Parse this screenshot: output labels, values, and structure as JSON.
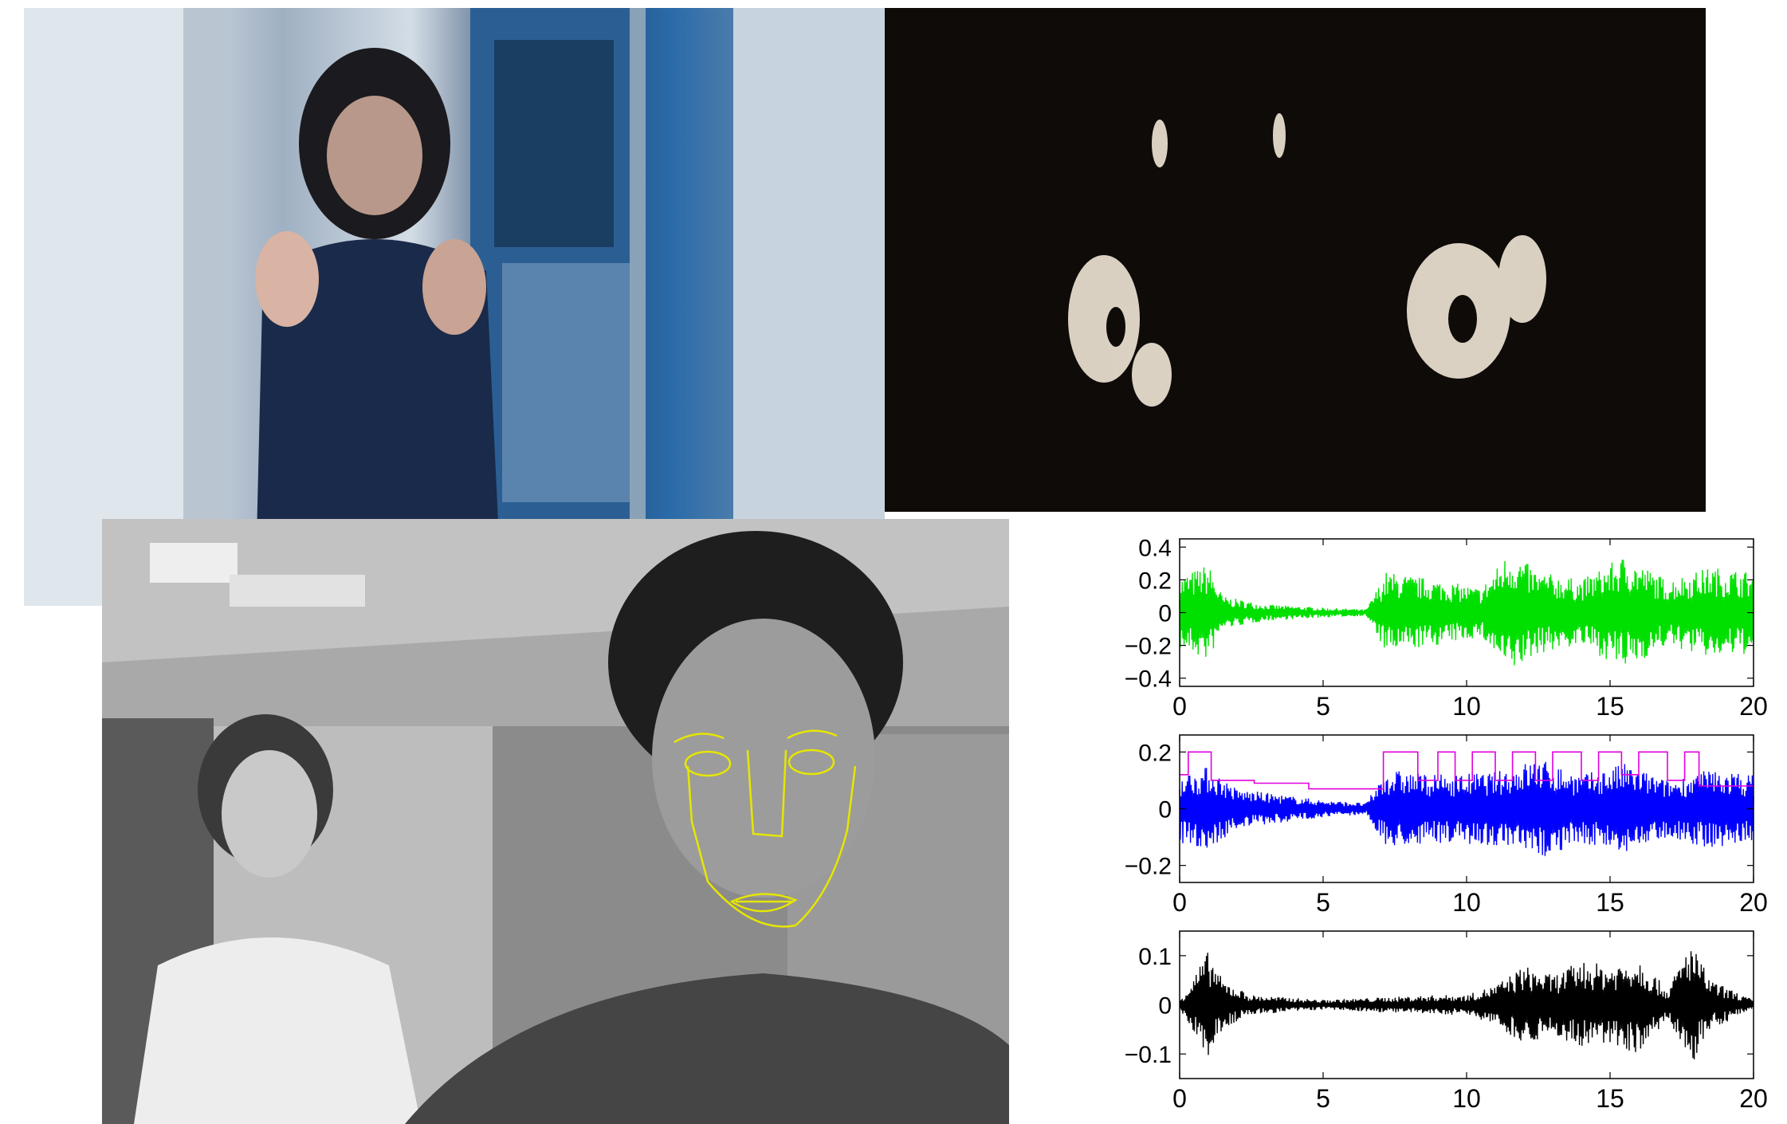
{
  "colors": {
    "green_signal": "#00e000",
    "magenta_signal": "#e000e0",
    "blue_signal": "#0000ff",
    "black_signal": "#000000",
    "face_overlay": "#e6e600"
  },
  "chart_data": [
    {
      "type": "line",
      "series": [
        {
          "color": "#00e000",
          "values_range": [
            -0.42,
            0.42
          ]
        }
      ],
      "xlim": [
        0,
        20
      ],
      "ylim": [
        -0.45,
        0.45
      ],
      "xticks": [
        "0",
        "5",
        "10",
        "15",
        "20"
      ],
      "yticks": [
        "0.4",
        "0.2",
        "0",
        "−0.2",
        "−0.4"
      ],
      "ytick_values": [
        0.4,
        0.2,
        0,
        -0.2,
        -0.4
      ],
      "envelope": [
        [
          0,
          0.22
        ],
        [
          1,
          0.3
        ],
        [
          1.5,
          0.1
        ],
        [
          3,
          0.05
        ],
        [
          5,
          0.03
        ],
        [
          6.5,
          0.02
        ],
        [
          7.2,
          0.25
        ],
        [
          9,
          0.2
        ],
        [
          10.5,
          0.15
        ],
        [
          11.5,
          0.38
        ],
        [
          12.5,
          0.25
        ],
        [
          14,
          0.2
        ],
        [
          15.5,
          0.35
        ],
        [
          17,
          0.2
        ],
        [
          18.5,
          0.28
        ],
        [
          20,
          0.25
        ]
      ]
    },
    {
      "type": "line",
      "series": [
        {
          "color": "#e000e0",
          "description_level_high": 0.2,
          "description_level_low": 0.07
        },
        {
          "color": "#0000ff",
          "values_range": [
            -0.23,
            0.2
          ]
        }
      ],
      "xlim": [
        0,
        20
      ],
      "ylim": [
        -0.26,
        0.26
      ],
      "xticks": [
        "0",
        "5",
        "10",
        "15",
        "20"
      ],
      "yticks": [
        "0.2",
        "0",
        "−0.2"
      ],
      "ytick_values": [
        0.2,
        0,
        -0.2
      ],
      "envelope": [
        [
          0,
          0.12
        ],
        [
          1,
          0.15
        ],
        [
          2,
          0.07
        ],
        [
          3.5,
          0.05
        ],
        [
          5,
          0.03
        ],
        [
          6.5,
          0.02
        ],
        [
          7.2,
          0.14
        ],
        [
          9,
          0.12
        ],
        [
          11,
          0.13
        ],
        [
          12.5,
          0.18
        ],
        [
          14,
          0.12
        ],
        [
          15.5,
          0.16
        ],
        [
          17,
          0.1
        ],
        [
          18.5,
          0.14
        ],
        [
          20,
          0.12
        ]
      ]
    },
    {
      "type": "line",
      "series": [
        {
          "color": "#000000",
          "values_range": [
            -0.13,
            0.13
          ]
        }
      ],
      "xlim": [
        0,
        20
      ],
      "ylim": [
        -0.15,
        0.15
      ],
      "xticks": [
        "0",
        "5",
        "10",
        "15",
        "20"
      ],
      "yticks": [
        "0.1",
        "0",
        "−0.1"
      ],
      "ytick_values": [
        0.1,
        0,
        -0.1
      ],
      "envelope": [
        [
          0,
          0.01
        ],
        [
          1,
          0.11
        ],
        [
          1.5,
          0.05
        ],
        [
          2.5,
          0.02
        ],
        [
          5,
          0.01
        ],
        [
          7,
          0.015
        ],
        [
          9,
          0.02
        ],
        [
          10,
          0.02
        ],
        [
          11,
          0.04
        ],
        [
          12,
          0.08
        ],
        [
          13,
          0.06
        ],
        [
          14,
          0.09
        ],
        [
          15,
          0.08
        ],
        [
          16,
          0.1
        ],
        [
          17,
          0.03
        ],
        [
          17.8,
          0.13
        ],
        [
          18.5,
          0.05
        ],
        [
          20,
          0.01
        ]
      ]
    }
  ]
}
